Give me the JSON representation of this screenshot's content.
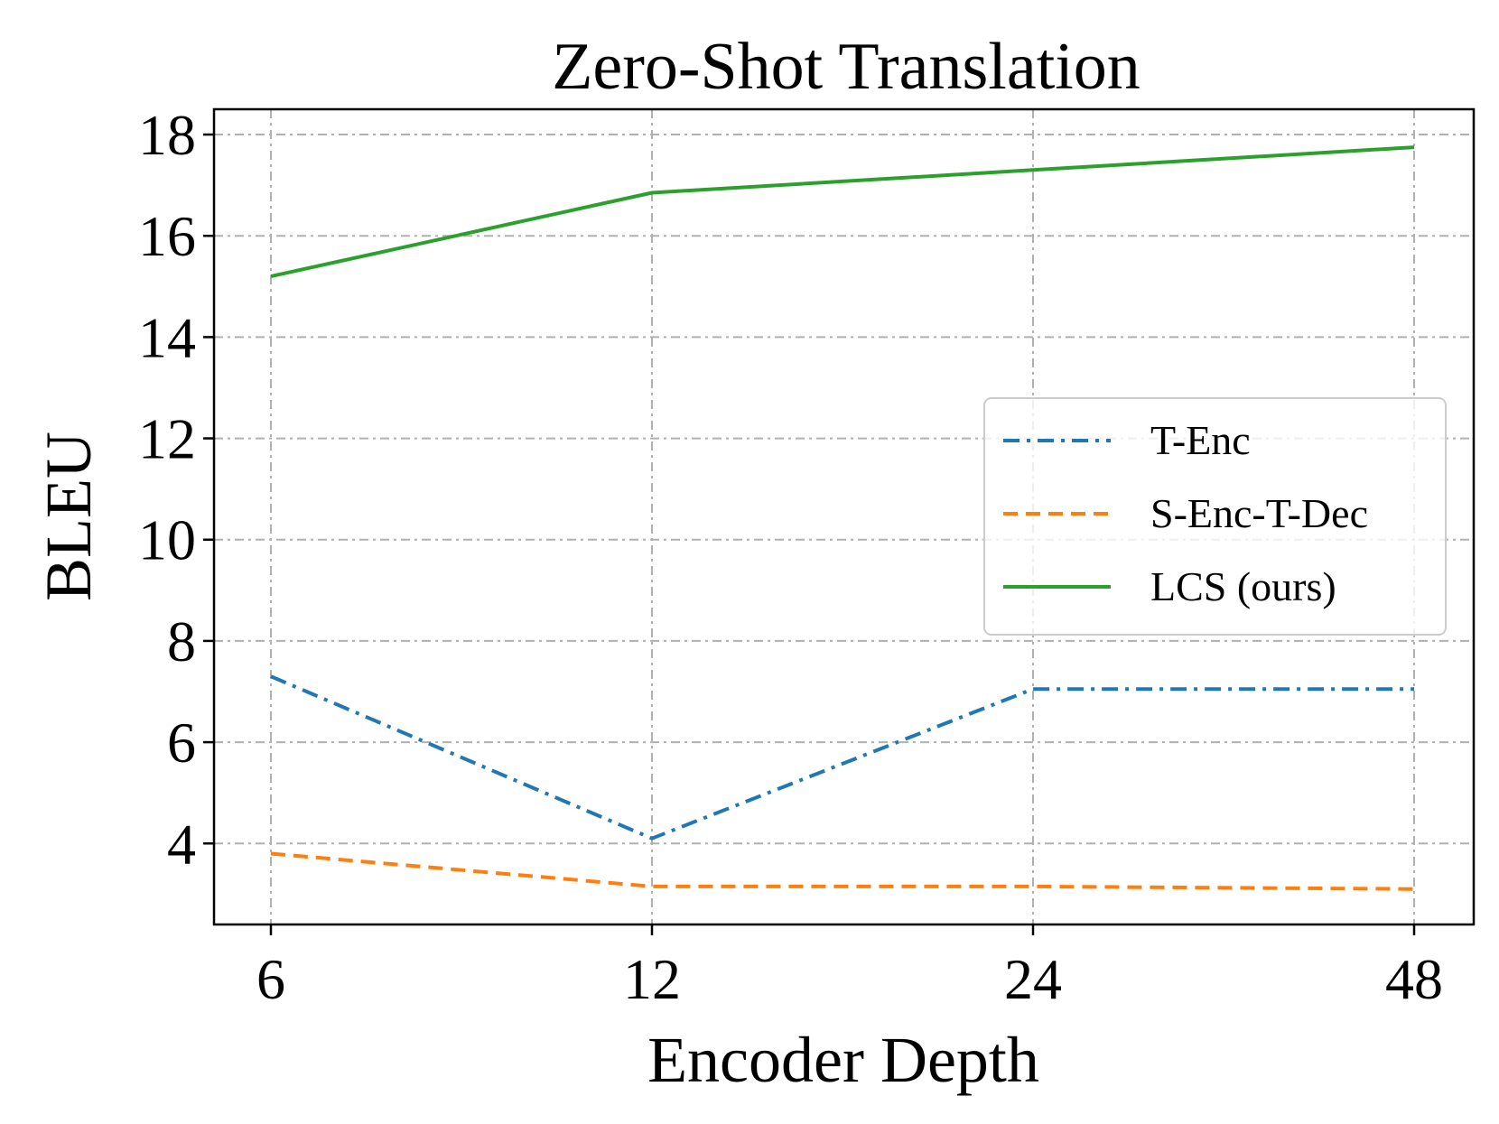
{
  "chart_data": {
    "type": "line",
    "title": "Zero-Shot Translation",
    "xlabel": "Encoder Depth",
    "ylabel": "BLEU",
    "categories": [
      "6",
      "12",
      "24",
      "48"
    ],
    "y_ticks": [
      4,
      6,
      8,
      10,
      12,
      14,
      16,
      18
    ],
    "ylim": [
      2.4,
      18.5
    ],
    "grid": true,
    "legend_position": "center-right",
    "series": [
      {
        "name": "T-Enc",
        "color": "#1f77b4",
        "style": "dashdot",
        "values": [
          7.3,
          4.1,
          7.05,
          7.05
        ]
      },
      {
        "name": "S-Enc-T-Dec",
        "color": "#ff7f0e",
        "style": "dashed",
        "values": [
          3.8,
          3.15,
          3.15,
          3.1
        ]
      },
      {
        "name": "LCS (ours)",
        "color": "#2ca02c",
        "style": "solid",
        "values": [
          15.2,
          16.85,
          17.3,
          17.75
        ]
      }
    ]
  }
}
